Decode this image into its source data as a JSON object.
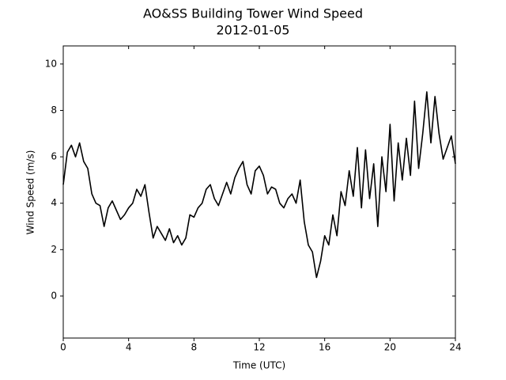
{
  "chart_data": {
    "type": "line",
    "title": "AO&SS Building Tower Wind Speed",
    "subtitle": "2012-01-05",
    "x_label": "Time (UTC)",
    "y_label": "Wind Speed (m/s)",
    "xlim": [
      0,
      24
    ],
    "ylim": [
      -1.81,
      10.78
    ],
    "xticks": [
      0,
      4,
      8,
      12,
      16,
      20,
      24
    ],
    "yticks": [
      0,
      2,
      4,
      6,
      8,
      10
    ],
    "grid": false,
    "series": [
      {
        "name": "Wind Speed",
        "color": "#000000",
        "x": [
          0,
          0.25,
          0.5,
          0.75,
          1,
          1.25,
          1.5,
          1.75,
          2,
          2.25,
          2.5,
          2.75,
          3,
          3.25,
          3.5,
          3.75,
          4,
          4.25,
          4.5,
          4.75,
          5,
          5.25,
          5.5,
          5.75,
          6,
          6.25,
          6.5,
          6.75,
          7,
          7.25,
          7.5,
          7.75,
          8,
          8.25,
          8.5,
          8.75,
          9,
          9.25,
          9.5,
          9.75,
          10,
          10.25,
          10.5,
          10.75,
          11,
          11.25,
          11.5,
          11.75,
          12,
          12.25,
          12.5,
          12.75,
          13,
          13.25,
          13.5,
          13.75,
          14,
          14.25,
          14.5,
          14.75,
          15,
          15.25,
          15.5,
          15.75,
          16,
          16.25,
          16.5,
          16.75,
          17,
          17.25,
          17.5,
          17.75,
          18,
          18.25,
          18.5,
          18.75,
          19,
          19.25,
          19.5,
          19.75,
          20,
          20.25,
          20.5,
          20.75,
          21,
          21.25,
          21.5,
          21.75,
          22,
          22.25,
          22.5,
          22.75,
          23,
          23.25,
          23.5,
          23.75,
          24
        ],
        "values": [
          4.8,
          6.2,
          6.5,
          6.0,
          6.6,
          5.8,
          5.5,
          4.4,
          4.0,
          3.9,
          3.0,
          3.8,
          4.1,
          3.7,
          3.3,
          3.5,
          3.8,
          4.0,
          4.6,
          4.3,
          4.8,
          3.6,
          2.5,
          3.0,
          2.7,
          2.4,
          2.9,
          2.3,
          2.6,
          2.2,
          2.5,
          3.5,
          3.4,
          3.8,
          4.0,
          4.6,
          4.8,
          4.2,
          3.9,
          4.4,
          4.9,
          4.4,
          5.1,
          5.5,
          5.8,
          4.8,
          4.4,
          5.4,
          5.6,
          5.2,
          4.4,
          4.7,
          4.6,
          4.0,
          3.8,
          4.2,
          4.4,
          4.0,
          5.0,
          3.2,
          2.2,
          1.9,
          0.8,
          1.5,
          2.6,
          2.2,
          3.5,
          2.6,
          4.5,
          3.9,
          5.4,
          4.3,
          6.4,
          3.8,
          6.3,
          4.2,
          5.7,
          3.0,
          6.0,
          4.5,
          7.4,
          4.1,
          6.6,
          5.0,
          6.8,
          5.2,
          8.4,
          5.5,
          7.0,
          8.8,
          6.6,
          8.6,
          7.0,
          5.9,
          6.4,
          6.9,
          5.7
        ]
      }
    ]
  }
}
